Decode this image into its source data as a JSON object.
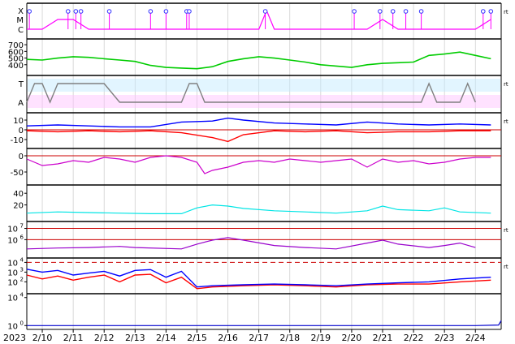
{
  "chart_data": [
    {
      "type": "line",
      "panel": "space-weather-flares",
      "y_categories": [
        "X",
        "M",
        "C"
      ],
      "series": [
        {
          "color": "#ff00ff",
          "values_note_free": true,
          "x": [
            "2/9 12:00",
            "2/10 00:00",
            "2/10 12:00",
            "2/11 00:00",
            "2/11 12:00",
            "2/12 00:00",
            "2/12 12:00",
            "2/13 00:00",
            "2/13 12:00",
            "2/14 00:00",
            "2/14 12:00",
            "2/15 00:00",
            "2/15 12:00",
            "2/16 00:00",
            "2/16 12:00",
            "2/17 00:00",
            "2/17 06:00",
            "2/17 12:00",
            "2/18 00:00",
            "2/18 12:00",
            "2/19 00:00",
            "2/19 12:00",
            "2/20 00:00",
            "2/20 12:00",
            "2/21 00:00",
            "2/21 12:00",
            "2/22 00:00",
            "2/22 12:00",
            "2/23 00:00",
            "2/23 12:00",
            "2/24 00:00",
            "2/24 12:00"
          ],
          "y": [
            "C",
            "C",
            "M",
            "M",
            "C",
            "C",
            "C",
            "C",
            "C",
            "C",
            "C",
            "C",
            "C",
            "C",
            "C",
            "C",
            "X",
            "C",
            "C",
            "C",
            "C",
            "C",
            "C",
            "C",
            "M",
            "C",
            "C",
            "C",
            "C",
            "C",
            "C",
            "M"
          ]
        }
      ],
      "markers": [
        "2/9 14:00",
        "2/10 20:00",
        "2/11 02:00",
        "2/11 06:00",
        "2/12 04:00",
        "2/13 12:00",
        "2/14 00:00",
        "2/14 16:00",
        "2/14 18:00",
        "2/17 05:00",
        "2/20 02:00",
        "2/20 22:00",
        "2/21 08:00",
        "2/21 18:00",
        "2/22 06:00",
        "2/24 06:00",
        "2/24 12:00"
      ],
      "right_label": "rt"
    },
    {
      "type": "line",
      "panel": "solar-wind-speed",
      "yticks": [
        400,
        500,
        600,
        700
      ],
      "ylim": [
        300,
        750
      ],
      "series": [
        {
          "color": "#00cc00",
          "x": [
            "2/9 12:00",
            "2/10 00:00",
            "2/10 12:00",
            "2/11 00:00",
            "2/11 12:00",
            "2/12 00:00",
            "2/12 12:00",
            "2/13 00:00",
            "2/13 12:00",
            "2/14 00:00",
            "2/14 12:00",
            "2/15 00:00",
            "2/15 12:00",
            "2/16 00:00",
            "2/16 12:00",
            "2/17 00:00",
            "2/17 12:00",
            "2/18 00:00",
            "2/18 12:00",
            "2/19 00:00",
            "2/19 12:00",
            "2/20 00:00",
            "2/20 12:00",
            "2/21 00:00",
            "2/21 12:00",
            "2/22 00:00",
            "2/22 12:00",
            "2/23 00:00",
            "2/23 12:00",
            "2/24 00:00",
            "2/24 12:00"
          ],
          "y": [
            480,
            470,
            500,
            520,
            510,
            490,
            470,
            450,
            390,
            360,
            350,
            340,
            370,
            450,
            490,
            520,
            500,
            470,
            440,
            400,
            380,
            360,
            400,
            420,
            430,
            440,
            540,
            560,
            590,
            540,
            490
          ]
        }
      ]
    },
    {
      "type": "line",
      "panel": "imf-sector",
      "y_categories": [
        "T",
        "A"
      ],
      "series": [
        {
          "color": "#808080",
          "x": [
            "2/9 12:00",
            "2/9 18:00",
            "2/10 00:00",
            "2/10 06:00",
            "2/10 12:00",
            "2/11 00:00",
            "2/11 12:00",
            "2/12 00:00",
            "2/12 12:00",
            "2/13 00:00",
            "2/14 12:00",
            "2/14 18:00",
            "2/15 00:00",
            "2/15 06:00",
            "2/15 12:00",
            "2/22 06:00",
            "2/22 12:00",
            "2/22 18:00",
            "2/23 12:00",
            "2/23 18:00",
            "2/24 00:00"
          ],
          "y": [
            "A",
            "T",
            "T",
            "A",
            "T",
            "T",
            "T",
            "T",
            "A",
            "A",
            "A",
            "T",
            "T",
            "A",
            "A",
            "A",
            "T",
            "A",
            "A",
            "T",
            "A"
          ]
        }
      ],
      "right_label": "rt"
    },
    {
      "type": "line",
      "panel": "imf-components",
      "yticks": [
        -10,
        0,
        10
      ],
      "ylim": [
        -15,
        15
      ],
      "series": [
        {
          "color": "#0000ff",
          "x": [
            "2/9 12:00",
            "2/10 12:00",
            "2/11 12:00",
            "2/12 12:00",
            "2/13 12:00",
            "2/14 12:00",
            "2/15 12:00",
            "2/16 00:00",
            "2/16 12:00",
            "2/17 12:00",
            "2/18 12:00",
            "2/19 12:00",
            "2/20 12:00",
            "2/21 12:00",
            "2/22 12:00",
            "2/23 12:00",
            "2/24 12:00"
          ],
          "y": [
            4,
            5,
            4,
            3,
            3,
            8,
            9,
            12,
            10,
            7,
            6,
            5,
            8,
            6,
            5,
            6,
            5
          ]
        },
        {
          "color": "#ff0000",
          "x": [
            "2/9 12:00",
            "2/10 12:00",
            "2/11 12:00",
            "2/12 12:00",
            "2/13 12:00",
            "2/14 12:00",
            "2/15 12:00",
            "2/16 00:00",
            "2/16 12:00",
            "2/17 12:00",
            "2/18 12:00",
            "2/19 12:00",
            "2/20 12:00",
            "2/21 12:00",
            "2/22 12:00",
            "2/23 12:00",
            "2/24 12:00"
          ],
          "y": [
            -1,
            -2,
            -1,
            -2,
            -1,
            -3,
            -8,
            -12,
            -5,
            -1,
            -2,
            -1,
            -3,
            -2,
            -2,
            -1,
            -1
          ]
        }
      ],
      "right_label": "rt"
    },
    {
      "type": "line",
      "panel": "dst-index",
      "yticks": [
        -50,
        0
      ],
      "ylim": [
        -75,
        15
      ],
      "series": [
        {
          "color": "#cc00cc",
          "x": [
            "2/9 12:00",
            "2/10 00:00",
            "2/10 12:00",
            "2/11 00:00",
            "2/11 12:00",
            "2/12 00:00",
            "2/12 12:00",
            "2/13 00:00",
            "2/13 12:00",
            "2/14 00:00",
            "2/14 12:00",
            "2/15 00:00",
            "2/15 06:00",
            "2/15 12:00",
            "2/16 00:00",
            "2/16 12:00",
            "2/17 00:00",
            "2/17 12:00",
            "2/18 00:00",
            "2/18 12:00",
            "2/19 00:00",
            "2/19 12:00",
            "2/20 00:00",
            "2/20 12:00",
            "2/21 00:00",
            "2/21 12:00",
            "2/22 00:00",
            "2/22 12:00",
            "2/23 00:00",
            "2/23 12:00",
            "2/24 00:00",
            "2/24 12:00"
          ],
          "y": [
            -10,
            -30,
            -25,
            -15,
            -20,
            -5,
            -10,
            -20,
            -5,
            0,
            -5,
            -20,
            -55,
            -45,
            -35,
            -20,
            -15,
            -20,
            -10,
            -15,
            -20,
            -15,
            -10,
            -35,
            -10,
            -20,
            -15,
            -25,
            -20,
            -10,
            -5,
            -5
          ]
        }
      ]
    },
    {
      "type": "line",
      "panel": "proton-density",
      "yticks": [
        20,
        40
      ],
      "ylim": [
        0,
        50
      ],
      "series": [
        {
          "color": "#00e5e5",
          "x": [
            "2/9 12:00",
            "2/10 12:00",
            "2/11 12:00",
            "2/12 12:00",
            "2/13 12:00",
            "2/14 12:00",
            "2/15 00:00",
            "2/15 12:00",
            "2/16 00:00",
            "2/16 12:00",
            "2/17 12:00",
            "2/18 12:00",
            "2/19 12:00",
            "2/20 12:00",
            "2/21 00:00",
            "2/21 12:00",
            "2/22 12:00",
            "2/23 00:00",
            "2/23 12:00",
            "2/24 12:00"
          ],
          "y": [
            6,
            8,
            7,
            6,
            5,
            5,
            15,
            20,
            18,
            14,
            10,
            8,
            6,
            10,
            18,
            12,
            10,
            15,
            8,
            6
          ]
        }
      ]
    },
    {
      "type": "line",
      "panel": "proton-flux-log",
      "y_scale": "log",
      "ytick_labels": [
        "10^6",
        "10^7"
      ],
      "series": [
        {
          "color": "#9900cc",
          "x": [
            "2/9 12:00",
            "2/10 12:00",
            "2/11 12:00",
            "2/12 12:00",
            "2/13 00:00",
            "2/14 12:00",
            "2/15 00:00",
            "2/15 12:00",
            "2/16 00:00",
            "2/16 12:00",
            "2/17 12:00",
            "2/18 12:00",
            "2/19 12:00",
            "2/20 12:00",
            "2/21 00:00",
            "2/21 12:00",
            "2/22 12:00",
            "2/23 00:00",
            "2/23 12:00",
            "2/24 00:00"
          ],
          "y": [
            150000,
            180000,
            200000,
            250000,
            200000,
            150000,
            400000,
            900000,
            1500000,
            900000,
            300000,
            200000,
            150000,
            500000,
            900000,
            400000,
            200000,
            300000,
            500000,
            200000
          ]
        }
      ],
      "right_label": "rt"
    },
    {
      "type": "line",
      "panel": "electron-flux-log",
      "y_scale": "log",
      "ytick_labels": [
        "10^2",
        "10^3",
        "10^4"
      ],
      "series": [
        {
          "color": "#0000ff",
          "x": [
            "2/9 12:00",
            "2/10 00:00",
            "2/10 12:00",
            "2/11 00:00",
            "2/11 12:00",
            "2/12 00:00",
            "2/12 12:00",
            "2/13 00:00",
            "2/13 12:00",
            "2/14 00:00",
            "2/14 12:00",
            "2/15 00:00",
            "2/15 12:00",
            "2/16 12:00",
            "2/17 12:00",
            "2/18 12:00",
            "2/19 12:00",
            "2/20 12:00",
            "2/21 12:00",
            "2/22 12:00",
            "2/23 12:00",
            "2/24 12:00"
          ],
          "y": [
            2000,
            1000,
            1500,
            500,
            800,
            1200,
            400,
            1500,
            1800,
            300,
            1200,
            30,
            40,
            50,
            60,
            50,
            40,
            60,
            80,
            100,
            200,
            300
          ]
        },
        {
          "color": "#ff0000",
          "x": [
            "2/9 12:00",
            "2/10 00:00",
            "2/10 12:00",
            "2/11 00:00",
            "2/11 12:00",
            "2/12 00:00",
            "2/12 12:00",
            "2/13 00:00",
            "2/13 12:00",
            "2/14 00:00",
            "2/14 12:00",
            "2/15 00:00",
            "2/15 12:00",
            "2/16 12:00",
            "2/17 12:00",
            "2/18 12:00",
            "2/19 12:00",
            "2/20 12:00",
            "2/21 12:00",
            "2/22 12:00",
            "2/23 12:00",
            "2/24 12:00"
          ],
          "y": [
            500,
            200,
            400,
            150,
            300,
            500,
            100,
            500,
            600,
            80,
            300,
            20,
            30,
            40,
            50,
            40,
            30,
            50,
            60,
            60,
            100,
            150
          ]
        }
      ],
      "right_label": "rt"
    },
    {
      "type": "line",
      "panel": "xray-background-log",
      "y_scale": "log",
      "ytick_labels": [
        "10^0",
        "10^4"
      ],
      "series": [
        {
          "color": "#0000cc",
          "x": [
            "2/9 12:00",
            "2/12 00:00",
            "2/15 00:00",
            "2/18 00:00",
            "2/21 00:00",
            "2/24 00:00",
            "2/24 18:00",
            "2/24 20:00"
          ],
          "y": [
            1,
            1,
            1,
            1,
            1,
            1,
            1.2,
            5
          ]
        }
      ]
    }
  ],
  "x_axis": {
    "year_label": "2023",
    "tick_labels": [
      "2/10",
      "2/11",
      "2/12",
      "2/13",
      "2/14",
      "2/15",
      "2/16",
      "2/17",
      "2/18",
      "2/19",
      "2/20",
      "2/21",
      "2/22",
      "2/23",
      "2/24"
    ],
    "grid": true
  }
}
